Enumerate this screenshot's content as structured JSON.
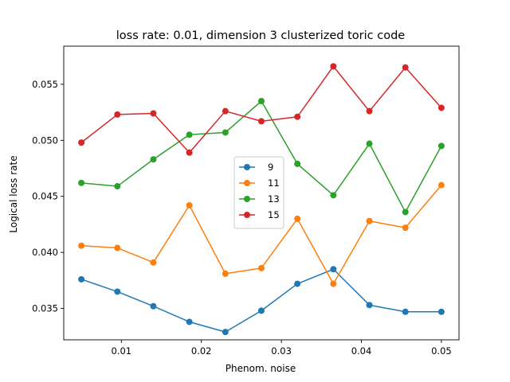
{
  "chart_data": {
    "type": "line",
    "title": "loss rate: 0.01, dimension 3 clusterized toric code",
    "xlabel": "Phenom. noise",
    "ylabel": "Logical loss rate",
    "xlim": [
      0.0028,
      0.0522
    ],
    "ylim": [
      0.0322,
      0.0584
    ],
    "x_ticks": [
      0.01,
      0.02,
      0.03,
      0.04,
      0.05
    ],
    "x_tick_labels": [
      "0.01",
      "0.02",
      "0.03",
      "0.04",
      "0.05"
    ],
    "y_ticks": [
      0.035,
      0.04,
      0.045,
      0.05,
      0.055
    ],
    "y_tick_labels": [
      "0.035",
      "0.040",
      "0.045",
      "0.050",
      "0.055"
    ],
    "grid": false,
    "legend_position": "center",
    "x": [
      0.005,
      0.0095,
      0.014,
      0.0185,
      0.023,
      0.0275,
      0.032,
      0.0365,
      0.041,
      0.0455,
      0.05
    ],
    "series": [
      {
        "name": "9",
        "color": "#1f77b4",
        "values": [
          0.0376,
          0.0365,
          0.0352,
          0.0338,
          0.0329,
          0.0348,
          0.0372,
          0.0385,
          0.0353,
          0.0347,
          0.0347
        ]
      },
      {
        "name": "11",
        "color": "#ff7f0e",
        "values": [
          0.0406,
          0.0404,
          0.0391,
          0.0442,
          0.0381,
          0.0386,
          0.043,
          0.0372,
          0.0428,
          0.0422,
          0.046
        ]
      },
      {
        "name": "13",
        "color": "#2ca02c",
        "values": [
          0.0462,
          0.0459,
          0.0483,
          0.0505,
          0.0507,
          0.0535,
          0.0479,
          0.0451,
          0.0497,
          0.0436,
          0.0495
        ]
      },
      {
        "name": "15",
        "color": "#d62728",
        "values": [
          0.0498,
          0.0523,
          0.0524,
          0.0489,
          0.0526,
          0.0517,
          0.0521,
          0.0566,
          0.0526,
          0.0565,
          0.0529
        ]
      }
    ]
  }
}
